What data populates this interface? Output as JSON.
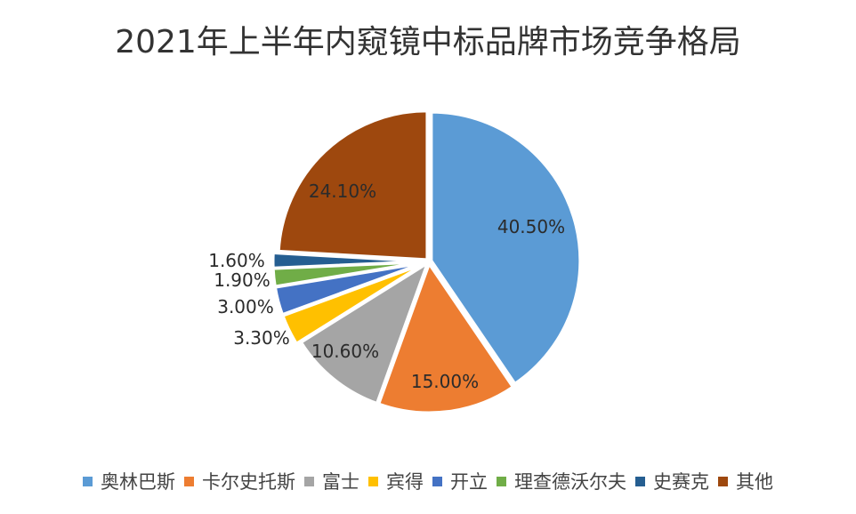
{
  "chart": {
    "title": "2021年上半年内窥镜中标品牌市场竞争格局"
  },
  "chart_data": {
    "type": "pie",
    "title": "2021年上半年内窥镜中标品牌市场竞争格局",
    "categories": [
      "奥林巴斯",
      "卡尔史托斯",
      "富士",
      "宾得",
      "开立",
      "理查德沃尔夫",
      "史赛克",
      "其他"
    ],
    "values": [
      40.5,
      15.0,
      10.6,
      3.3,
      3.0,
      1.9,
      1.6,
      24.1
    ],
    "labels": [
      "40.50%",
      "15.00%",
      "10.60%",
      "3.30%",
      "3.00%",
      "1.90%",
      "1.60%",
      "24.10%"
    ],
    "colors": [
      "#5B9BD5",
      "#ED7D31",
      "#A5A5A5",
      "#FFC000",
      "#4472C4",
      "#70AD47",
      "#255E91",
      "#9E480E"
    ],
    "start_angle": "12 o'clock, clockwise",
    "legend_position": "bottom"
  },
  "legend": {
    "items": [
      {
        "label": "奥林巴斯",
        "color": "#5B9BD5"
      },
      {
        "label": "卡尔史托斯",
        "color": "#ED7D31"
      },
      {
        "label": "富士",
        "color": "#A5A5A5"
      },
      {
        "label": "宾得",
        "color": "#FFC000"
      },
      {
        "label": "开立",
        "color": "#4472C4"
      },
      {
        "label": "理查德沃尔夫",
        "color": "#70AD47"
      },
      {
        "label": "史赛克",
        "color": "#255E91"
      },
      {
        "label": "其他",
        "color": "#9E480E"
      }
    ]
  }
}
